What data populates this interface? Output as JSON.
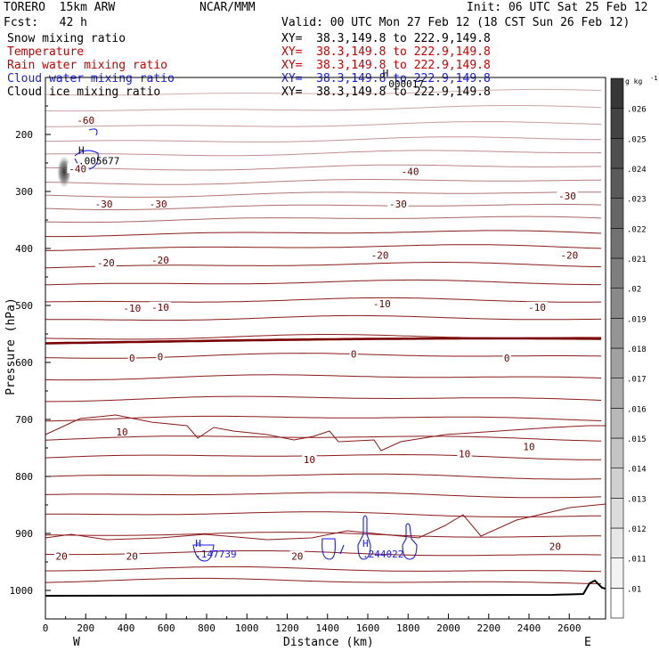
{
  "header": {
    "model": "TORERO  15km ARW",
    "org": "NCAR/MMM",
    "init": "Init: 06 UTC Sat 25 Feb 12",
    "fcst": "Fcst:   42 h",
    "valid": "Valid: 00 UTC Mon 27 Feb 12 (18 CST Sun 26 Feb 12)"
  },
  "fields": [
    {
      "name": "Snow mixing ratio",
      "xy": "XY=  38.3,149.8 to 222.9,149.8",
      "color": "#000000"
    },
    {
      "name": "Temperature",
      "xy": "XY=  38.3,149.8 to 222.9,149.8",
      "color": "#cc0000"
    },
    {
      "name": "Rain water mixing ratio",
      "xy": "XY=  38.3,149.8 to 222.9,149.8",
      "color": "#cc0000"
    },
    {
      "name": "Cloud water mixing ratio",
      "xy": "XY=  38.3,149.8 to 222.9,149.8",
      "color": "#1a1aff"
    },
    {
      "name": "Cloud ice mixing ratio",
      "xy": "XY=  38.3,149.8 to 222.9,149.8",
      "color": "#000000"
    }
  ],
  "chart_data": {
    "type": "contour-cross-section",
    "xlabel": "Distance (km)",
    "ylabel": "Pressure (hPa)",
    "xlim": [
      0,
      2780
    ],
    "ylim": [
      1050,
      100
    ],
    "xticks": [
      0,
      200,
      400,
      600,
      800,
      1000,
      1200,
      1400,
      1600,
      1800,
      2000,
      2200,
      2400,
      2600
    ],
    "yticks": [
      200,
      300,
      400,
      500,
      600,
      700,
      800,
      900,
      1000
    ],
    "x_end_labels": {
      "left": "W",
      "right": "E"
    },
    "colorbar": {
      "unit": "g kg",
      "unit_exp": "-1",
      "levels": [
        ".01",
        ".011",
        ".012",
        ".013",
        ".014",
        ".015",
        ".016",
        ".017",
        ".018",
        ".019",
        ".02",
        ".021",
        ".022",
        ".023",
        ".024",
        ".025",
        ".026"
      ]
    },
    "temperature_labels": [
      {
        "text": "-60",
        "x": 200,
        "p": 175
      },
      {
        "text": "-40",
        "x": 160,
        "p": 260
      },
      {
        "text": "-40",
        "x": 1810,
        "p": 265
      },
      {
        "text": "-30",
        "x": 290,
        "p": 322
      },
      {
        "text": "-30",
        "x": 560,
        "p": 322
      },
      {
        "text": "-30",
        "x": 1750,
        "p": 322
      },
      {
        "text": "-30",
        "x": 2590,
        "p": 308
      },
      {
        "text": "-20",
        "x": 300,
        "p": 425
      },
      {
        "text": "-20",
        "x": 570,
        "p": 420
      },
      {
        "text": "-20",
        "x": 1660,
        "p": 412
      },
      {
        "text": "-20",
        "x": 2600,
        "p": 412
      },
      {
        "text": "-10",
        "x": 430,
        "p": 505
      },
      {
        "text": "-10",
        "x": 570,
        "p": 503
      },
      {
        "text": "-10",
        "x": 1670,
        "p": 497
      },
      {
        "text": "-10",
        "x": 2440,
        "p": 503
      },
      {
        "text": "0",
        "x": 430,
        "p": 592
      },
      {
        "text": "0",
        "x": 570,
        "p": 590
      },
      {
        "text": "0",
        "x": 1530,
        "p": 585
      },
      {
        "text": "0",
        "x": 2290,
        "p": 592
      },
      {
        "text": "10",
        "x": 380,
        "p": 722
      },
      {
        "text": "10",
        "x": 1310,
        "p": 770
      },
      {
        "text": "10",
        "x": 2080,
        "p": 760
      },
      {
        "text": "10",
        "x": 2400,
        "p": 748
      },
      {
        "text": "20",
        "x": 80,
        "p": 940
      },
      {
        "text": "20",
        "x": 430,
        "p": 940
      },
      {
        "text": "20",
        "x": 1250,
        "p": 940
      },
      {
        "text": "20",
        "x": 2530,
        "p": 923
      }
    ],
    "highs": [
      {
        "letter": "H",
        "value": ".005677",
        "x": 190,
        "p": 240
      },
      {
        "letter": "H",
        "value": ".000017",
        "x": 1700,
        "p": 105
      },
      {
        "letter": "H",
        "value": ".147739",
        "x": 770,
        "p": 930
      },
      {
        "letter": "H",
        "value": ".244022",
        "x": 1600,
        "p": 930
      }
    ]
  }
}
